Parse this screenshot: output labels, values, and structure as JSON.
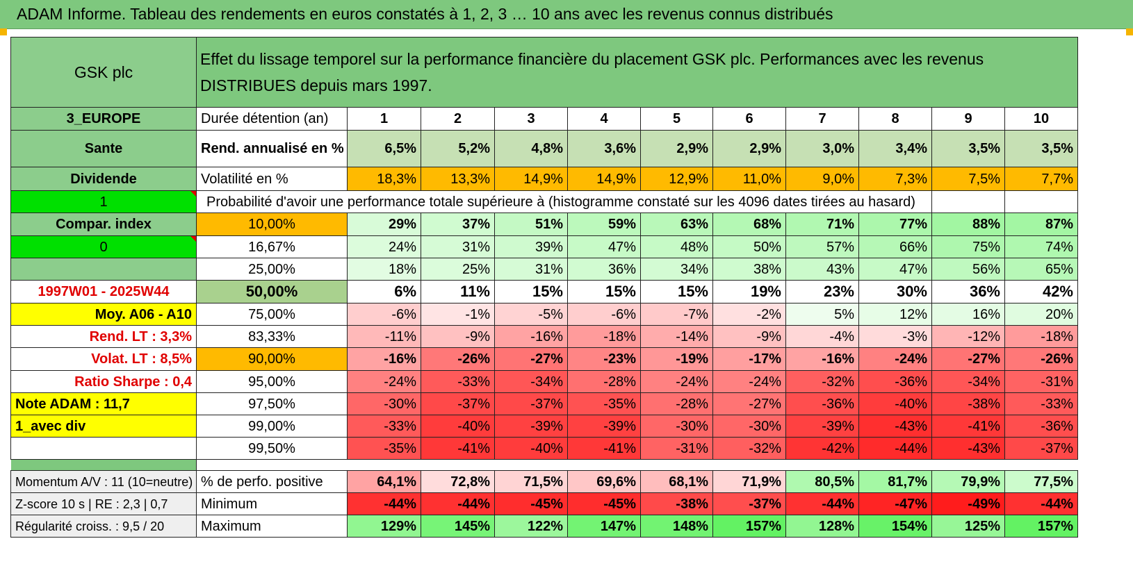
{
  "header": {
    "title": "ADAM Informe. Tableau des rendements en euros constatés à 1, 2, 3 … 10 ans avec les revenus connus distribués"
  },
  "asset": {
    "name": "GSK plc",
    "description": "Effet du lissage temporel sur la performance financière du placement GSK plc. Performances avec les revenus DISTRIBUES depuis mars 1997."
  },
  "left_panel": [
    "3_EUROPE",
    "Sante",
    "Dividende",
    "1",
    "Compar. index",
    "0",
    "",
    "1997W01 - 2025W44",
    "Moy. A06 - A10",
    "Rend. LT :   3,3%",
    "Volat. LT :   8,5%",
    "Ratio Sharpe :    0,4",
    "Note ADAM : 11,7",
    "1_avec div",
    ""
  ],
  "years_label": "Durée détention (an)",
  "years": [
    "1",
    "2",
    "3",
    "4",
    "5",
    "6",
    "7",
    "8",
    "9",
    "10"
  ],
  "rend": {
    "label": "Rend. annualisé en %",
    "values": [
      "6,5%",
      "5,2%",
      "4,8%",
      "3,6%",
      "2,9%",
      "2,9%",
      "3,0%",
      "3,4%",
      "3,5%",
      "3,5%"
    ]
  },
  "vol": {
    "label": "Volatilité en %",
    "values": [
      "18,3%",
      "13,3%",
      "14,9%",
      "14,9%",
      "12,9%",
      "11,0%",
      "9,0%",
      "7,3%",
      "7,5%",
      "7,7%"
    ]
  },
  "prob_title": "Probabilité d'avoir une performance totale supérieure à (histogramme constaté sur les 4096 dates tirées au hasard)",
  "quantiles": [
    {
      "label": "10,00%",
      "values": [
        "29%",
        "37%",
        "51%",
        "59%",
        "63%",
        "68%",
        "71%",
        "77%",
        "88%",
        "87%"
      ]
    },
    {
      "label": "16,67%",
      "values": [
        "24%",
        "31%",
        "39%",
        "47%",
        "48%",
        "50%",
        "57%",
        "66%",
        "75%",
        "74%"
      ]
    },
    {
      "label": "25,00%",
      "values": [
        "18%",
        "25%",
        "31%",
        "36%",
        "34%",
        "38%",
        "43%",
        "47%",
        "56%",
        "65%"
      ]
    },
    {
      "label": "50,00%",
      "values": [
        "6%",
        "11%",
        "15%",
        "15%",
        "15%",
        "19%",
        "23%",
        "30%",
        "36%",
        "42%"
      ]
    },
    {
      "label": "75,00%",
      "values": [
        "-6%",
        "-1%",
        "-5%",
        "-6%",
        "-7%",
        "-2%",
        "5%",
        "12%",
        "16%",
        "20%"
      ]
    },
    {
      "label": "83,33%",
      "values": [
        "-11%",
        "-9%",
        "-16%",
        "-18%",
        "-14%",
        "-9%",
        "-4%",
        "-3%",
        "-12%",
        "-18%"
      ]
    },
    {
      "label": "90,00%",
      "values": [
        "-16%",
        "-26%",
        "-27%",
        "-23%",
        "-19%",
        "-17%",
        "-16%",
        "-24%",
        "-27%",
        "-26%"
      ]
    },
    {
      "label": "95,00%",
      "values": [
        "-24%",
        "-33%",
        "-34%",
        "-28%",
        "-24%",
        "-24%",
        "-32%",
        "-36%",
        "-34%",
        "-31%"
      ]
    },
    {
      "label": "97,50%",
      "values": [
        "-30%",
        "-37%",
        "-37%",
        "-35%",
        "-28%",
        "-27%",
        "-36%",
        "-40%",
        "-38%",
        "-33%"
      ]
    },
    {
      "label": "99,00%",
      "values": [
        "-33%",
        "-40%",
        "-39%",
        "-39%",
        "-30%",
        "-30%",
        "-39%",
        "-43%",
        "-41%",
        "-36%"
      ]
    },
    {
      "label": "99,50%",
      "values": [
        "-35%",
        "-41%",
        "-40%",
        "-41%",
        "-31%",
        "-32%",
        "-42%",
        "-44%",
        "-43%",
        "-37%"
      ]
    }
  ],
  "bottom": [
    {
      "left": "Momentum A/V : 11 (10=neutre)",
      "label": "% de perfo. positive",
      "values": [
        "64,1%",
        "72,8%",
        "71,5%",
        "69,6%",
        "68,1%",
        "71,9%",
        "80,5%",
        "81,7%",
        "79,9%",
        "77,5%"
      ]
    },
    {
      "left": "Z-score 10 s | RE : 2,3 | 0,7",
      "label": "Minimum",
      "values": [
        "-44%",
        "-44%",
        "-45%",
        "-45%",
        "-38%",
        "-37%",
        "-44%",
        "-47%",
        "-49%",
        "-44%"
      ]
    },
    {
      "left": "Régularité croiss. : 9,5 / 20",
      "label": "Maximum",
      "values": [
        "129%",
        "145%",
        "122%",
        "147%",
        "148%",
        "157%",
        "128%",
        "154%",
        "125%",
        "157%"
      ]
    }
  ],
  "colors": {
    "header_green": "#7ec87e",
    "label_green": "#8ccd8c",
    "bright_green": "#00e000",
    "yellow": "#ffff00",
    "orange": "#ffba00",
    "median_green": "#a9d18e",
    "dark_red_text": "#e00000",
    "rend_fill": "#c6e0b4",
    "bottom_gray": "#efefef"
  }
}
